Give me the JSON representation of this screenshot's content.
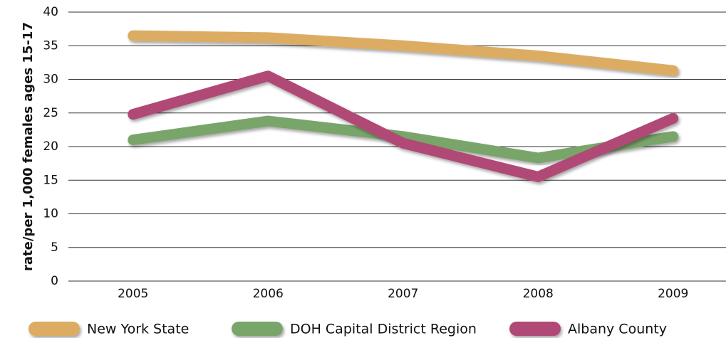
{
  "chart_data": {
    "type": "line",
    "y_label": "rate/per 1,000 females ages 15-17",
    "categories": [
      "2005",
      "2006",
      "2007",
      "2008",
      "2009"
    ],
    "series": [
      {
        "name": "New York State",
        "color": "#dcac62",
        "values": [
          36.5,
          36.2,
          35,
          33.5,
          31.3
        ]
      },
      {
        "name": "DOH Capital District Region",
        "color": "#7aa56a",
        "values": [
          21,
          23.8,
          21.5,
          18.3,
          21.5
        ]
      },
      {
        "name": "Albany County",
        "color": "#b04a74",
        "values": [
          24.8,
          30.5,
          20.5,
          15.5,
          24.2
        ]
      }
    ],
    "ylim": [
      0,
      40
    ],
    "yticks": [
      0,
      5,
      10,
      15,
      20,
      25,
      30,
      35,
      40
    ],
    "grid": true,
    "legend": "bottom"
  }
}
